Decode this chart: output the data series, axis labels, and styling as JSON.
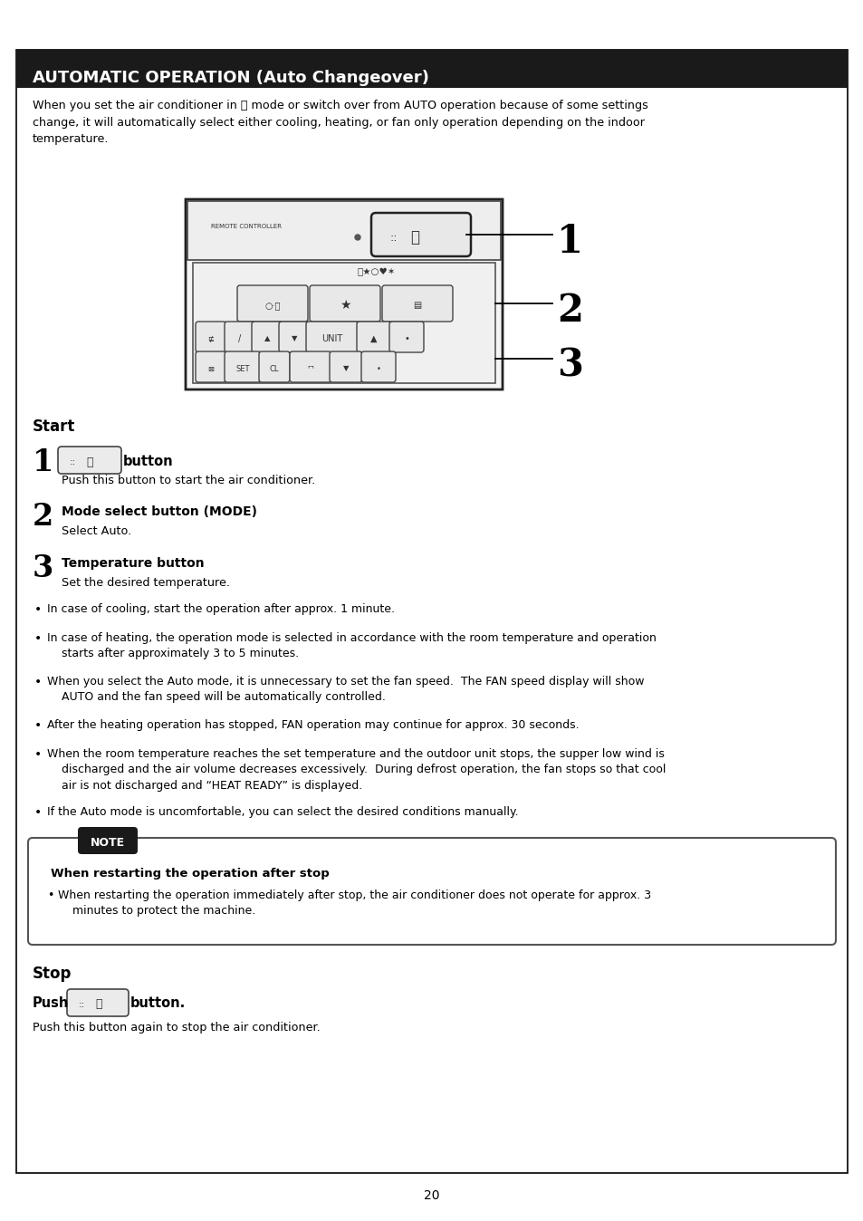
{
  "title": "AUTOMATIC OPERATION (Auto Changeover)",
  "title_bg": "#1a1a1a",
  "title_fg": "#ffffff",
  "page_bg": "#ffffff",
  "border_color": "#000000",
  "page_number": "20",
  "intro_text": "When you set the air conditioner in Ⓐ mode or switch over from AUTO operation because of some settings\nchange, it will automatically select either cooling, heating, or fan only operation depending on the indoor\ntemperature.",
  "start_label": "Start",
  "step1_label": "button",
  "step1_desc": "Push this button to start the air conditioner.",
  "step2_label": "Mode select button (MODE)",
  "step2_desc": "Select Auto.",
  "step3_label": "Temperature button",
  "step3_desc": "Set the desired temperature.",
  "bullets": [
    "In case of cooling, start the operation after approx. 1 minute.",
    "In case of heating, the operation mode is selected in accordance with the room temperature and operation\n    starts after approximately 3 to 5 minutes.",
    "When you select the Auto mode, it is unnecessary to set the fan speed.  The FAN speed display will show\n    AUTO and the fan speed will be automatically controlled.",
    "After the heating operation has stopped, FAN operation may continue for approx. 30 seconds.",
    "When the room temperature reaches the set temperature and the outdoor unit stops, the supper low wind is\n    discharged and the air volume decreases excessively.  During defrost operation, the fan stops so that cool\n    air is not discharged and “HEAT READY” is displayed.",
    "If the Auto mode is uncomfortable, you can select the desired conditions manually."
  ],
  "note_title": "NOTE",
  "note_subtitle": "When restarting the operation after stop",
  "note_bullet": "When restarting the operation immediately after stop, the air conditioner does not operate for approx. 3\n    minutes to protect the machine.",
  "stop_label": "Stop",
  "stop_push": "Push",
  "stop_button_label": "button.",
  "stop_desc": "Push this button again to stop the air conditioner."
}
